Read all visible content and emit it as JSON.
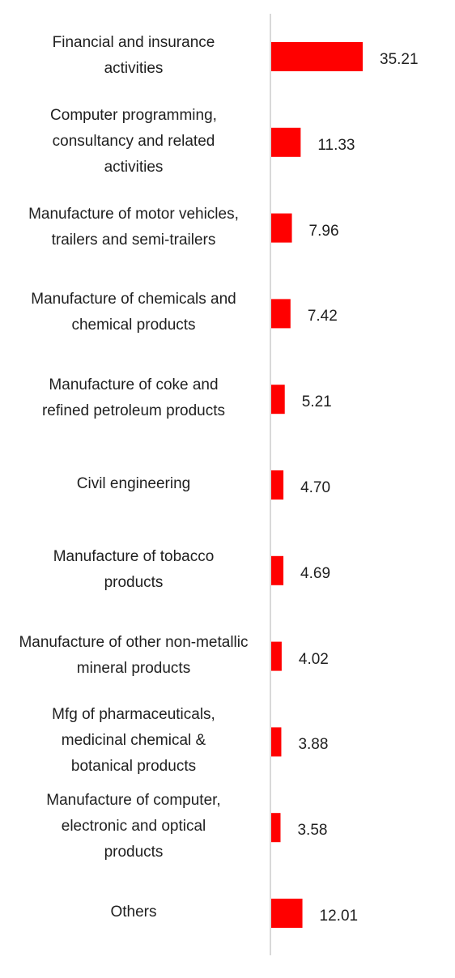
{
  "chart_data": {
    "type": "bar",
    "orientation": "horizontal",
    "title": "",
    "xlabel": "",
    "ylabel": "",
    "categories": [
      "Financial and insurance activities",
      "Computer programming, consultancy and related activities",
      "Manufacture of motor vehicles, trailers and semi-trailers",
      "Manufacture of chemicals and chemical products",
      "Manufacture of coke and refined petroleum products",
      "Civil engineering",
      "Manufacture of tobacco products",
      "Manufacture of other non-metallic mineral products",
      "Mfg of pharmaceuticals, medicinal chemical & botanical products",
      "Manufacture of computer, electronic and optical products",
      "Others"
    ],
    "values": [
      35.21,
      11.33,
      7.96,
      7.42,
      5.21,
      4.7,
      4.69,
      4.02,
      3.88,
      3.58,
      12.01
    ],
    "value_labels": [
      "35.21",
      "11.33",
      "7.96",
      "7.42",
      "5.21",
      "4.70",
      "4.69",
      "4.02",
      "3.88",
      "3.58",
      "12.01"
    ],
    "grid": false,
    "legend": "none",
    "bar_color": "#ff0000",
    "axis_color": "#d9d9d9"
  }
}
